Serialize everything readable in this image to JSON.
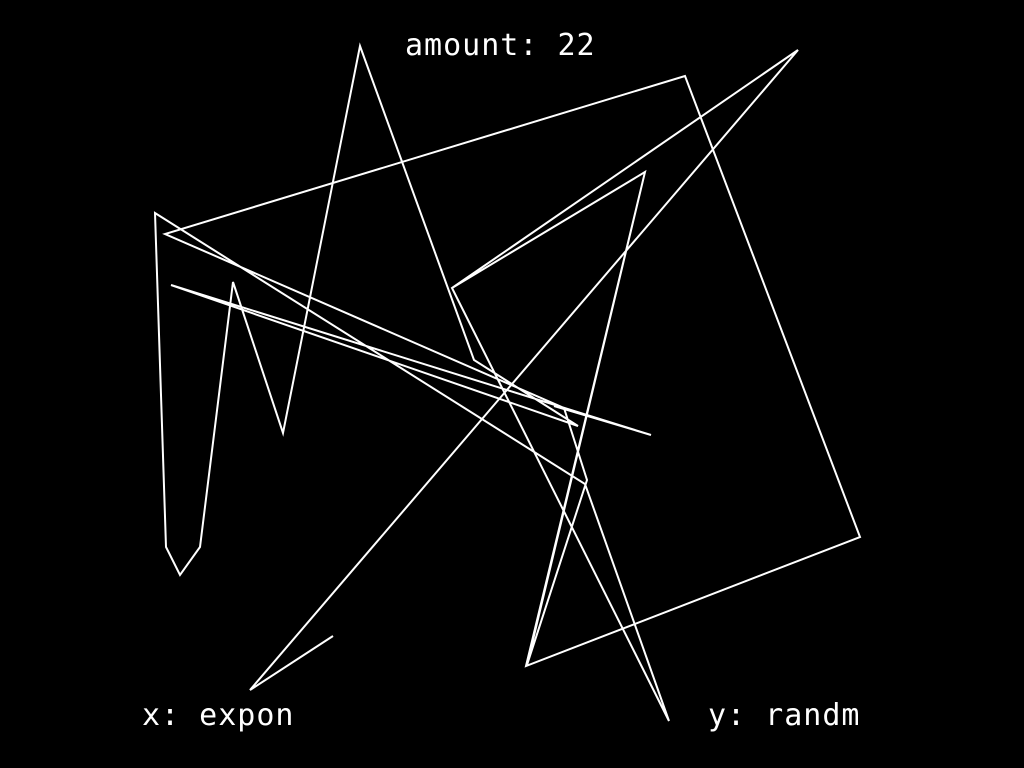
{
  "hud": {
    "amount_text": "amount: 22",
    "x_text": "x: expon",
    "y_text": "y: randm"
  },
  "colors": {
    "background": "#000000",
    "foreground": "#ffffff"
  }
}
